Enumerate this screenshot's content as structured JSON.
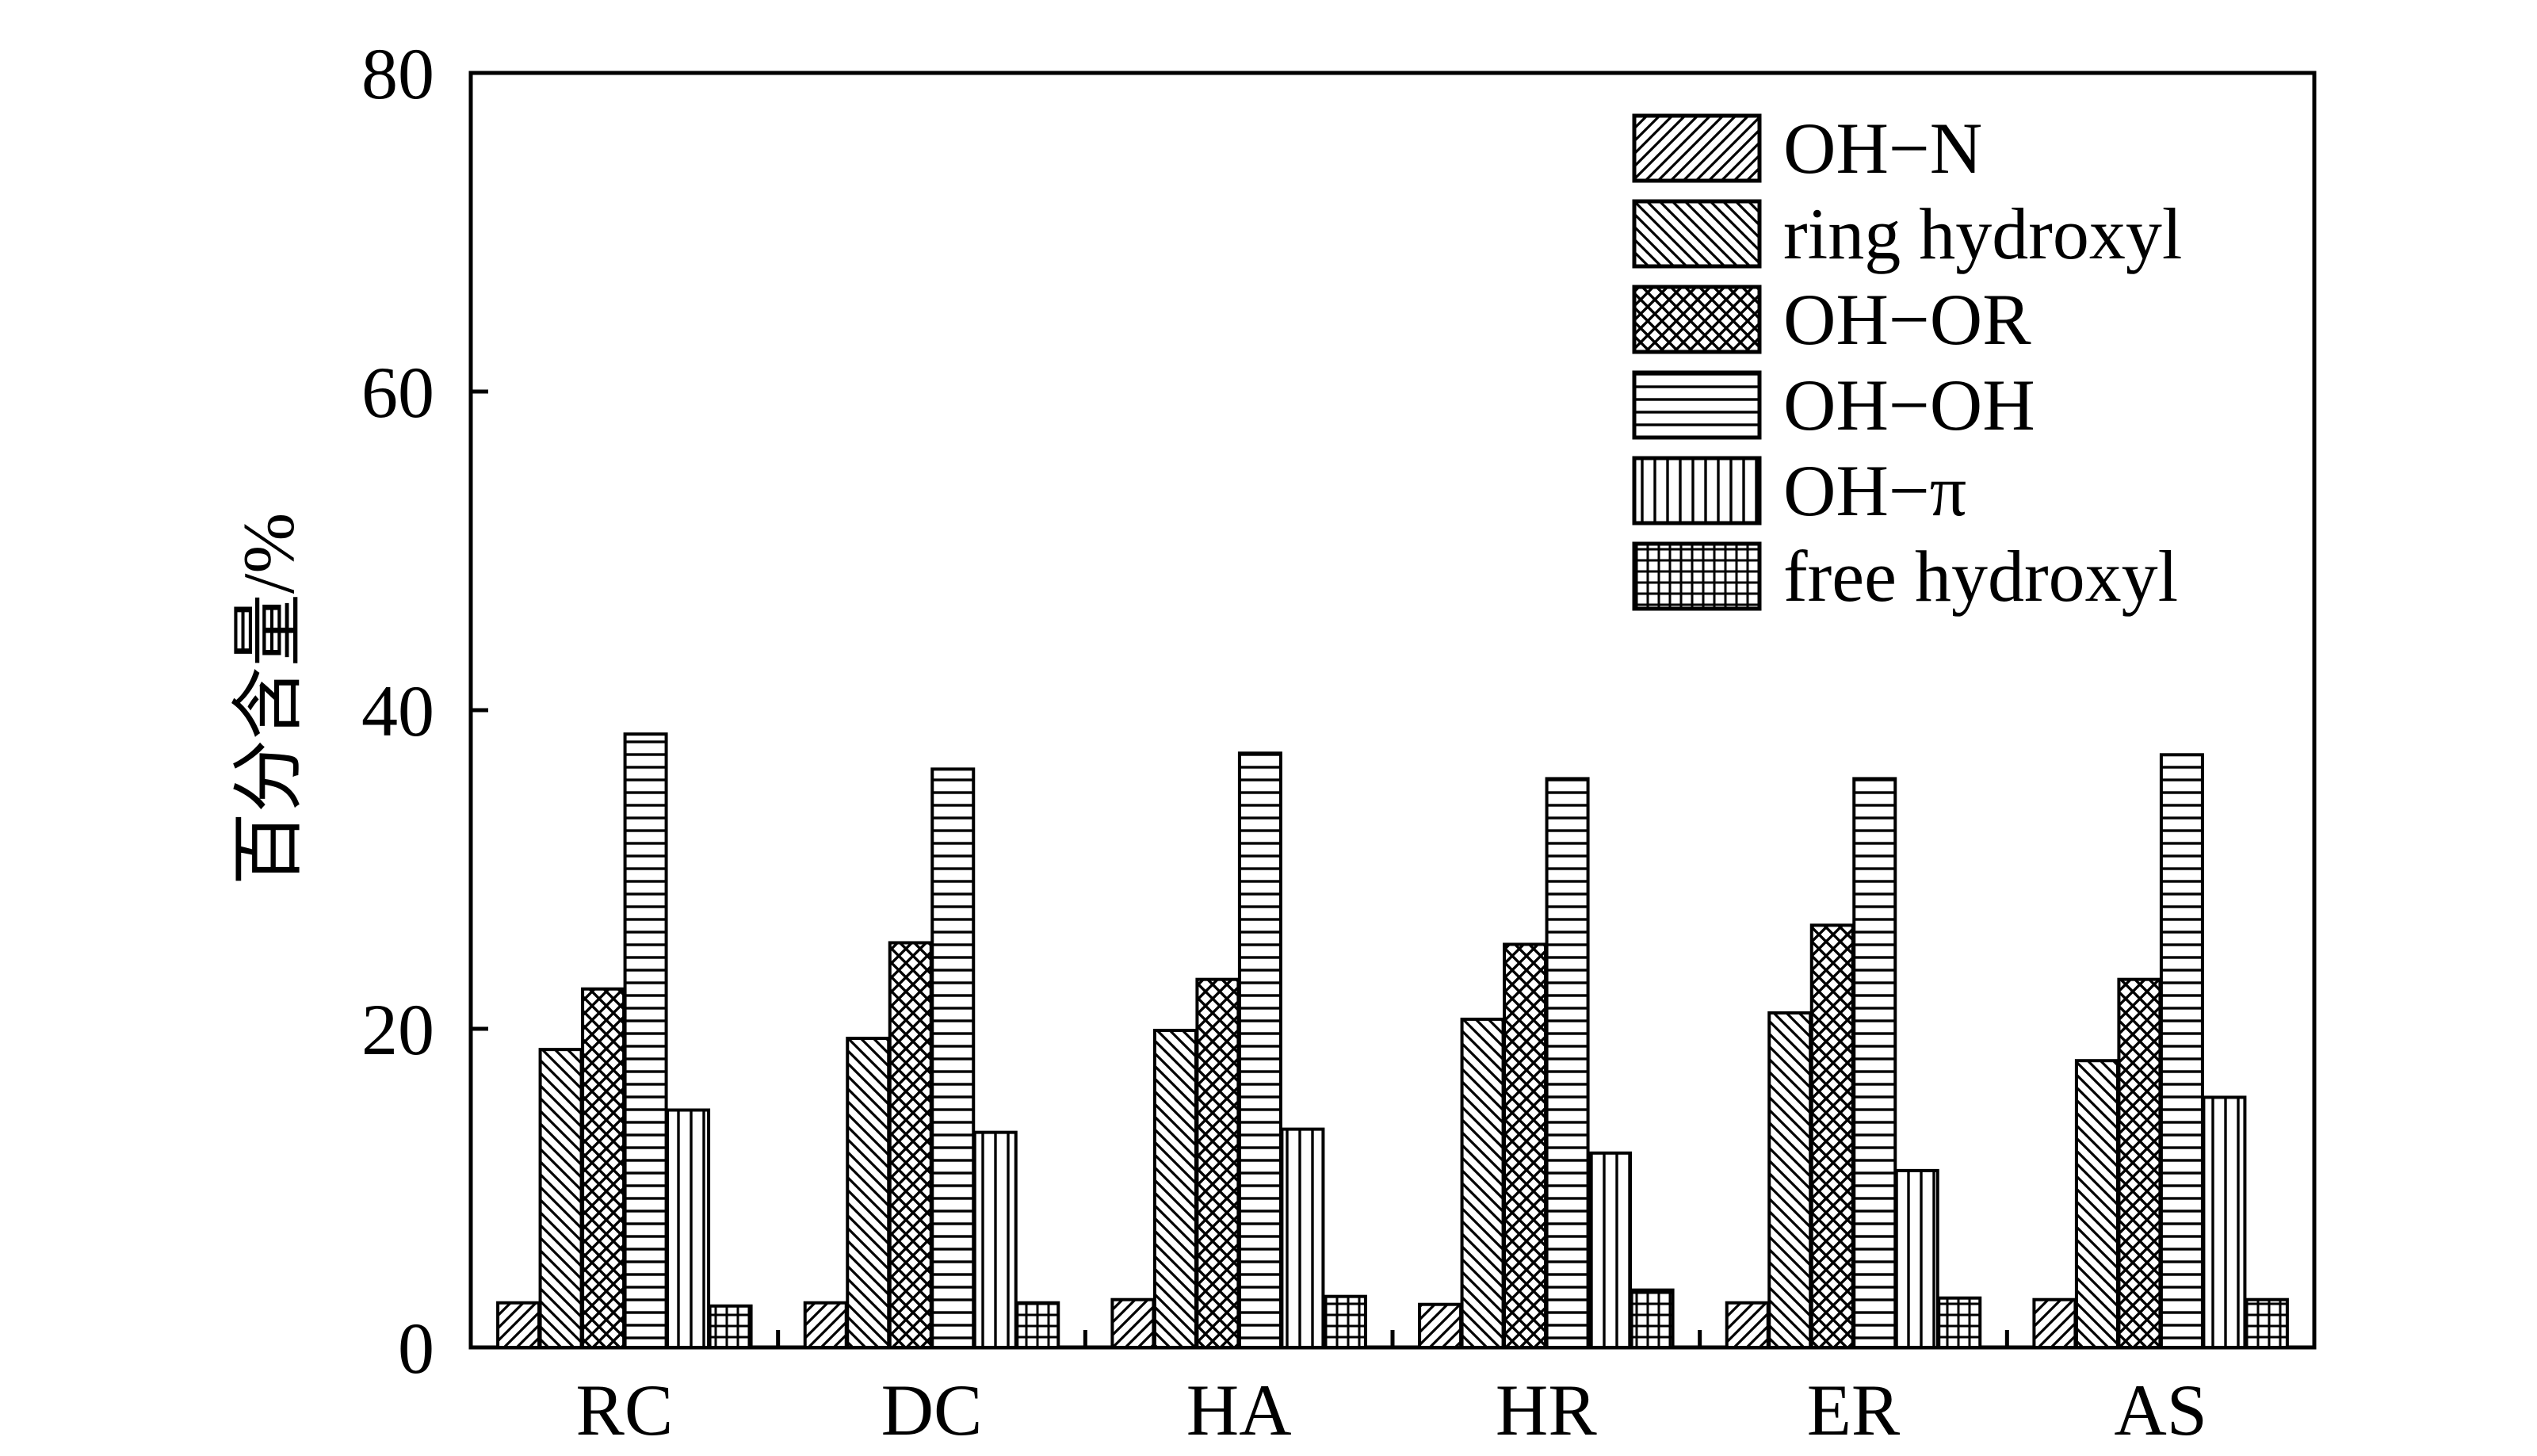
{
  "chart_data": {
    "type": "bar",
    "title": "",
    "xlabel": "",
    "ylabel": "百分含量/%",
    "ylim": [
      0,
      80
    ],
    "yticks": [
      0,
      20,
      40,
      60,
      80
    ],
    "categories": [
      "RC",
      "DC",
      "HA",
      "HR",
      "ER",
      "AS"
    ],
    "grid": false,
    "legend_position": "top-right",
    "series": [
      {
        "name": "OH−N",
        "pattern": "diagonal-up",
        "values": [
          2.8,
          2.8,
          3.0,
          2.7,
          2.8,
          3.0
        ]
      },
      {
        "name": "ring hydroxyl",
        "pattern": "diagonal-down",
        "values": [
          18.7,
          19.4,
          19.9,
          20.6,
          21.0,
          18.0
        ]
      },
      {
        "name": "OH−OR",
        "pattern": "crosshatch",
        "values": [
          22.5,
          25.4,
          23.1,
          25.3,
          26.5,
          23.1
        ]
      },
      {
        "name": "OH−OH",
        "pattern": "horizontal",
        "values": [
          38.5,
          36.3,
          37.3,
          35.7,
          35.7,
          37.2
        ]
      },
      {
        "name": "OH−π",
        "pattern": "vertical",
        "values": [
          14.9,
          13.5,
          13.7,
          12.2,
          11.1,
          15.7
        ]
      },
      {
        "name": "free hydroxyl",
        "pattern": "grid",
        "values": [
          2.6,
          2.8,
          3.2,
          3.6,
          3.1,
          3.0
        ]
      }
    ]
  },
  "colors": {
    "ink": "#000000",
    "background": "#ffffff"
  }
}
